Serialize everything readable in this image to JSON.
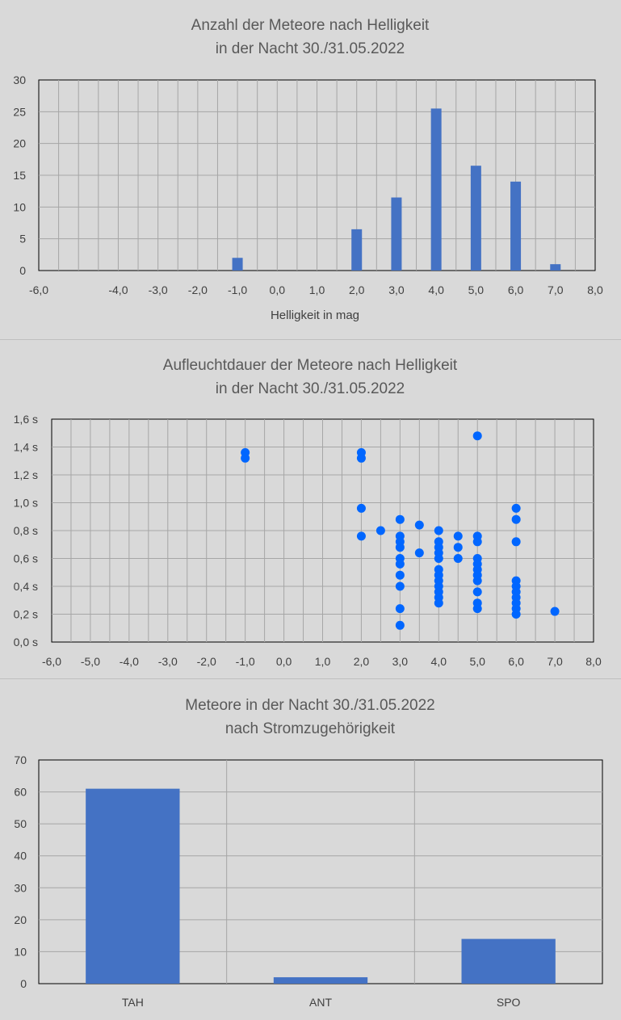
{
  "chart_data": [
    {
      "type": "bar",
      "title_lines": [
        "Anzahl der Meteore nach Helligkeit",
        "in der Nacht 30./31.05.2022"
      ],
      "xlabel": "Helligkeit in mag",
      "ylabel": "",
      "xlim": [
        -6,
        8
      ],
      "ylim": [
        0,
        30
      ],
      "x_ticks": [
        "-6,0",
        "-4,0",
        "-3,0",
        "-2,0",
        "-1,0",
        "0,0",
        "1,0",
        "2,0",
        "3,0",
        "4,0",
        "5,0",
        "6,0",
        "7,0",
        "8,0"
      ],
      "y_ticks": [
        "0",
        "5",
        "10",
        "15",
        "20",
        "25",
        "30"
      ],
      "x": [
        -1,
        2,
        3,
        4,
        5,
        6,
        7
      ],
      "values": [
        2,
        6.5,
        11.5,
        25.5,
        16.5,
        14,
        1
      ],
      "color": "#4472c4",
      "grid": true
    },
    {
      "type": "scatter",
      "title_lines": [
        "Aufleuchtdauer der Meteore nach Helligkeit",
        "in der Nacht 30./31.05.2022"
      ],
      "xlabel": "",
      "ylabel": "",
      "xlim": [
        -6,
        8
      ],
      "ylim": [
        0,
        1.6
      ],
      "x_ticks": [
        "-6,0",
        "-5,0",
        "-4,0",
        "-3,0",
        "-2,0",
        "-1,0",
        "0,0",
        "1,0",
        "2,0",
        "3,0",
        "4,0",
        "5,0",
        "6,0",
        "7,0",
        "8,0"
      ],
      "y_ticks": [
        "0,0 s",
        "0,2 s",
        "0,4 s",
        "0,6 s",
        "0,8 s",
        "1,0 s",
        "1,2 s",
        "1,4 s",
        "1,6 s"
      ],
      "points": [
        [
          -1,
          1.36
        ],
        [
          -1,
          1.32
        ],
        [
          2,
          1.36
        ],
        [
          2,
          1.32
        ],
        [
          2,
          0.96
        ],
        [
          2,
          0.76
        ],
        [
          2.5,
          0.8
        ],
        [
          3,
          0.88
        ],
        [
          3,
          0.76
        ],
        [
          3,
          0.72
        ],
        [
          3,
          0.68
        ],
        [
          3,
          0.6
        ],
        [
          3,
          0.56
        ],
        [
          3,
          0.48
        ],
        [
          3,
          0.4
        ],
        [
          3,
          0.24
        ],
        [
          3,
          0.12
        ],
        [
          3.5,
          0.84
        ],
        [
          3.5,
          0.64
        ],
        [
          4,
          0.8
        ],
        [
          4,
          0.72
        ],
        [
          4,
          0.68
        ],
        [
          4,
          0.64
        ],
        [
          4,
          0.6
        ],
        [
          4,
          0.52
        ],
        [
          4,
          0.48
        ],
        [
          4,
          0.44
        ],
        [
          4,
          0.4
        ],
        [
          4,
          0.36
        ],
        [
          4,
          0.32
        ],
        [
          4,
          0.28
        ],
        [
          4.5,
          0.76
        ],
        [
          4.5,
          0.68
        ],
        [
          4.5,
          0.6
        ],
        [
          5,
          1.48
        ],
        [
          5,
          0.76
        ],
        [
          5,
          0.72
        ],
        [
          5,
          0.6
        ],
        [
          5,
          0.56
        ],
        [
          5,
          0.52
        ],
        [
          5,
          0.48
        ],
        [
          5,
          0.44
        ],
        [
          5,
          0.36
        ],
        [
          5,
          0.28
        ],
        [
          5,
          0.24
        ],
        [
          6,
          0.96
        ],
        [
          6,
          0.88
        ],
        [
          6,
          0.72
        ],
        [
          6,
          0.44
        ],
        [
          6,
          0.4
        ],
        [
          6,
          0.36
        ],
        [
          6,
          0.32
        ],
        [
          6,
          0.28
        ],
        [
          6,
          0.24
        ],
        [
          6,
          0.2
        ],
        [
          7,
          0.22
        ]
      ],
      "color": "#0066ff",
      "grid": true
    },
    {
      "type": "bar",
      "title_lines": [
        "Meteore  in der Nacht 30./31.05.2022",
        "nach Stromzugehörigkeit"
      ],
      "xlabel": "",
      "ylabel": "",
      "ylim": [
        0,
        70
      ],
      "y_ticks": [
        "0",
        "10",
        "20",
        "30",
        "40",
        "50",
        "60",
        "70"
      ],
      "categories": [
        "TAH",
        "ANT",
        "SPO"
      ],
      "values": [
        61,
        2,
        14
      ],
      "color": "#4472c4",
      "grid": true
    }
  ]
}
